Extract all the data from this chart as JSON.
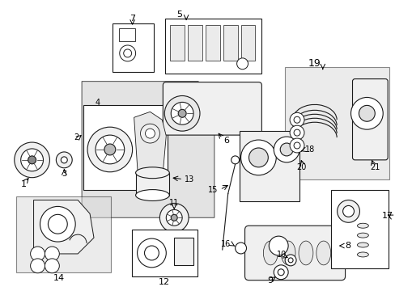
{
  "background_color": "#ffffff",
  "line_color": "#1a1a1a",
  "shaded_bg": "#d8d8d8",
  "box_bg": "#ffffff",
  "figsize": [
    4.89,
    3.6
  ],
  "dpi": 100
}
